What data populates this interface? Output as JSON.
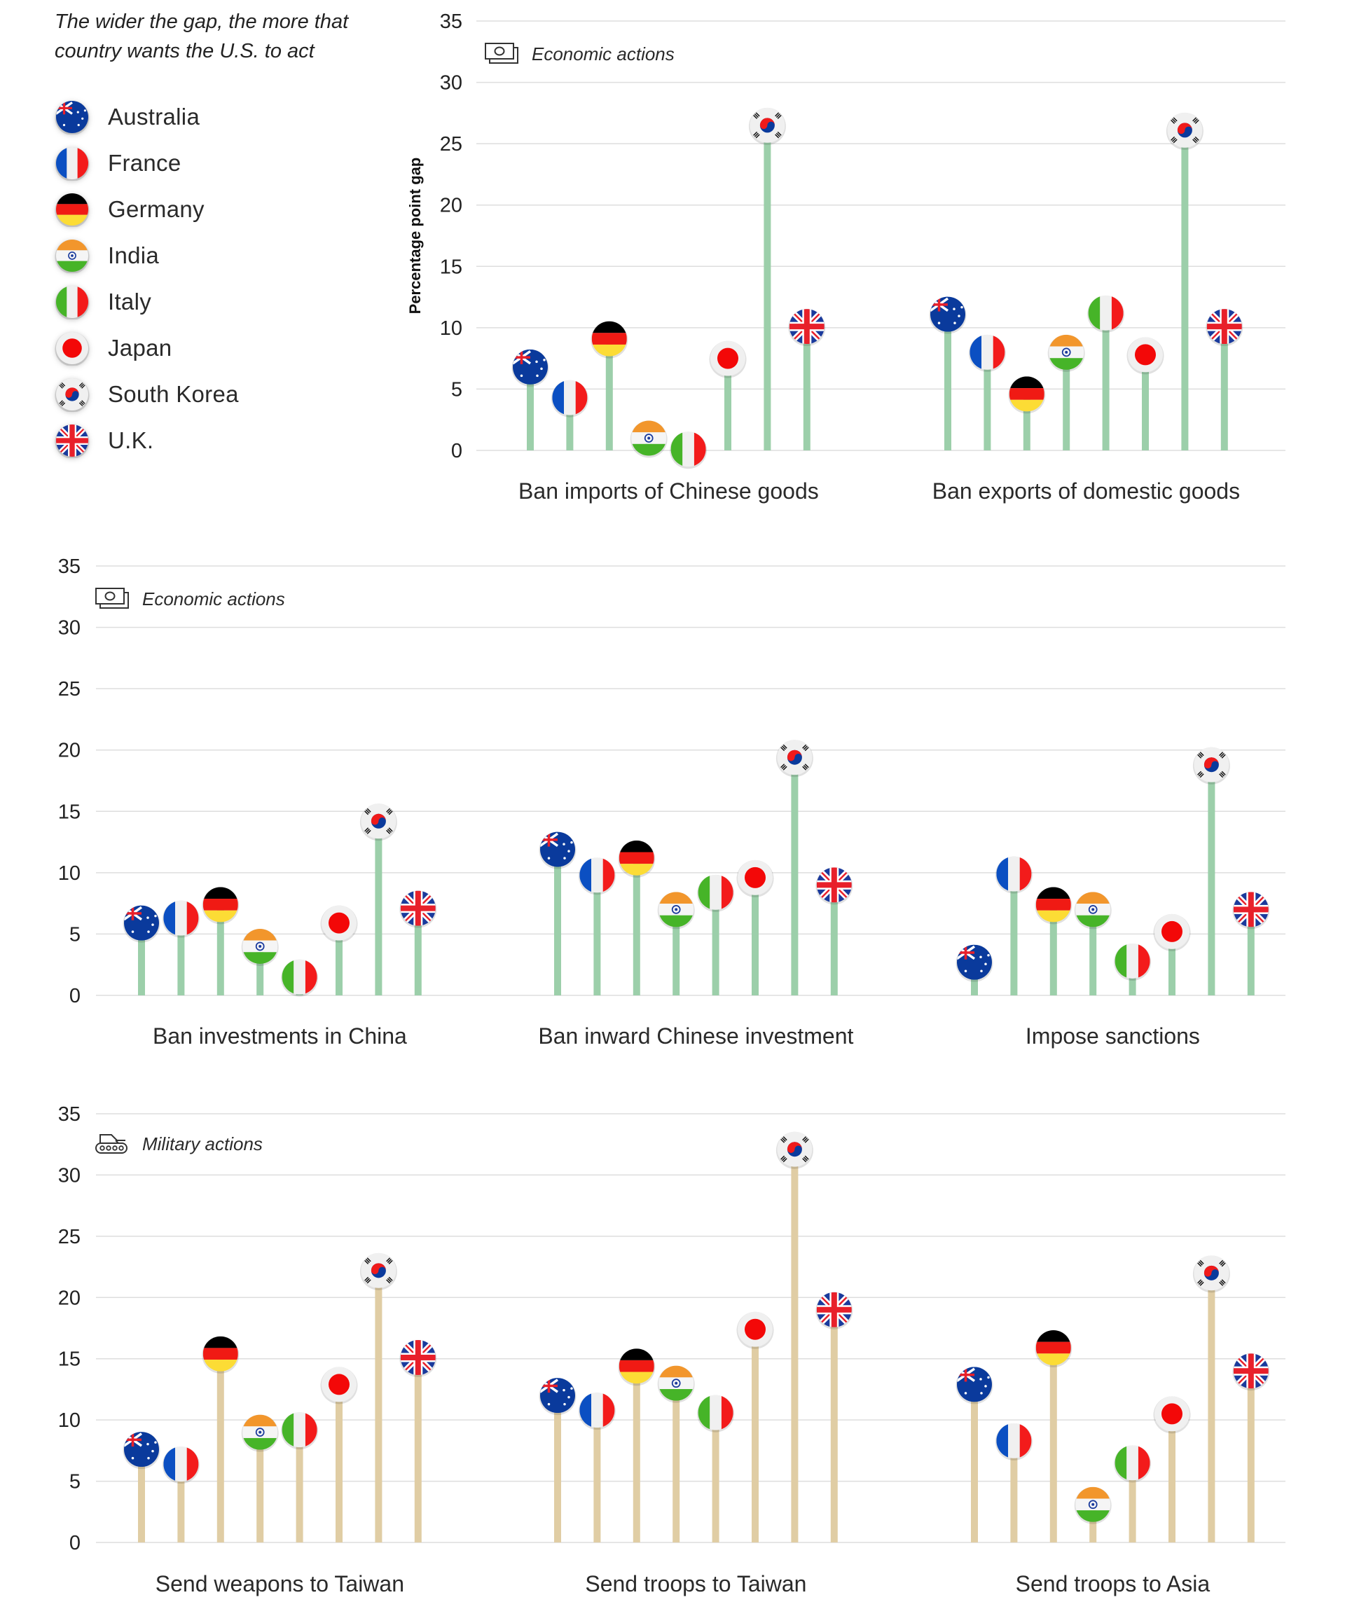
{
  "legend": {
    "note": "The wider the gap, the more that country wants the U.S. to act",
    "items": [
      {
        "country": "Australia",
        "flag": "australia-flag-icon"
      },
      {
        "country": "France",
        "flag": "france-flag-icon"
      },
      {
        "country": "Germany",
        "flag": "germany-flag-icon"
      },
      {
        "country": "India",
        "flag": "india-flag-icon"
      },
      {
        "country": "Italy",
        "flag": "italy-flag-icon"
      },
      {
        "country": "Japan",
        "flag": "japan-flag-icon"
      },
      {
        "country": "South Korea",
        "flag": "south-korea-flag-icon"
      },
      {
        "country": "U.K.",
        "flag": "uk-flag-icon"
      }
    ]
  },
  "colors": {
    "economic_stem": "#9ccfaa",
    "military_stem": "#e0cda4",
    "grid": "#dedede"
  },
  "chart_data": [
    {
      "type": "lollipop",
      "row_title": "Economic actions",
      "row_icon": "money-bills-icon",
      "ylabel": "Percentage point gap",
      "ylim": [
        0,
        35
      ],
      "yticks": [
        0,
        5,
        10,
        15,
        20,
        25,
        30,
        35
      ],
      "grid": true,
      "countries": [
        "Australia",
        "France",
        "Germany",
        "India",
        "Italy",
        "Japan",
        "South Korea",
        "U.K."
      ],
      "groups": [
        {
          "label": "Ban imports of Chinese goods",
          "values": [
            6.8,
            4.3,
            9.1,
            1.0,
            0.1,
            7.5,
            26.5,
            10.1
          ]
        },
        {
          "label": "Ban exports of domestic goods",
          "values": [
            11.1,
            8.0,
            4.6,
            8.0,
            11.2,
            7.8,
            26.1,
            10.1
          ]
        }
      ]
    },
    {
      "type": "lollipop",
      "row_title": "Economic actions",
      "row_icon": "money-bills-icon",
      "ylabel": "",
      "ylim": [
        0,
        35
      ],
      "yticks": [
        0,
        5,
        10,
        15,
        20,
        25,
        30,
        35
      ],
      "grid": true,
      "countries": [
        "Australia",
        "France",
        "Germany",
        "India",
        "Italy",
        "Japan",
        "South Korea",
        "U.K."
      ],
      "groups": [
        {
          "label": "Ban investments in China",
          "values": [
            5.9,
            6.3,
            7.4,
            4.0,
            1.5,
            5.9,
            14.2,
            7.1
          ]
        },
        {
          "label": "Ban inward Chinese investment",
          "values": [
            11.9,
            9.8,
            11.2,
            7.0,
            8.4,
            9.6,
            19.4,
            9.0
          ]
        },
        {
          "label": "Impose sanctions",
          "values": [
            2.7,
            9.9,
            7.4,
            7.0,
            2.8,
            5.2,
            18.8,
            7.0
          ]
        }
      ]
    },
    {
      "type": "lollipop",
      "row_title": "Military actions",
      "row_icon": "tank-icon",
      "ylabel": "",
      "ylim": [
        0,
        35
      ],
      "yticks": [
        0,
        5,
        10,
        15,
        20,
        25,
        30,
        35
      ],
      "grid": true,
      "countries": [
        "Australia",
        "France",
        "Germany",
        "India",
        "Italy",
        "Japan",
        "South Korea",
        "U.K."
      ],
      "groups": [
        {
          "label": "Send weapons to Taiwan",
          "values": [
            7.6,
            6.4,
            15.4,
            9.0,
            9.2,
            12.9,
            22.2,
            15.1
          ]
        },
        {
          "label": "Send troops to Taiwan",
          "values": [
            12.0,
            10.8,
            14.4,
            13.0,
            10.6,
            17.4,
            32.1,
            19.0
          ]
        },
        {
          "label": "Send troops to Asia",
          "values": [
            12.9,
            8.3,
            15.9,
            3.1,
            6.5,
            10.5,
            22.0,
            14.0
          ]
        }
      ]
    }
  ]
}
